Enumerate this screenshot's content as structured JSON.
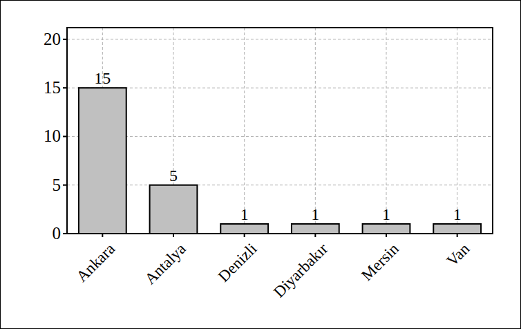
{
  "chart_data": {
    "type": "bar",
    "categories": [
      "Ankara",
      "Antalya",
      "Denizli",
      "Diyarbakır",
      "Mersin",
      "Van"
    ],
    "values": [
      15,
      5,
      1,
      1,
      1,
      1
    ],
    "color": "#c0c0c0",
    "ylim": [
      0,
      21.2
    ],
    "yticks": [
      0,
      5,
      10,
      15,
      20
    ],
    "grid": true,
    "data_labels": true
  }
}
